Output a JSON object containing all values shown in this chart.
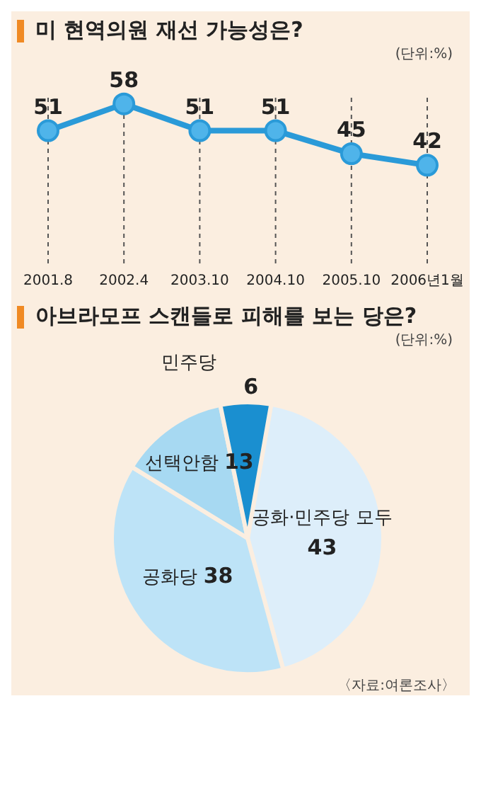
{
  "chart_data": [
    {
      "type": "line",
      "title": "미 현역의원 재선 가능성은?",
      "annotations": [
        "(단위:%)"
      ],
      "categories": [
        "2001.8",
        "2002.4",
        "2003.10",
        "2004.10",
        "2005.10",
        "2006년1월"
      ],
      "series": [
        {
          "color": "#2a9ad8",
          "values": [
            51,
            58,
            51,
            51,
            45,
            42
          ]
        }
      ],
      "data_labels": true,
      "marker": "circle",
      "grid": "x",
      "legend": false
    },
    {
      "type": "pie",
      "title": "아브라모프 스캔들로 피해를 보는 당은?",
      "annotations": [
        "(단위:%)",
        "〈자료:여론조사〉"
      ],
      "categories": [
        "공화·민주당 모두",
        "공화당",
        "선택안함",
        "민주당"
      ],
      "values": [
        43,
        38,
        13,
        6
      ],
      "colors": [
        "#ddeefa",
        "#bde3f7",
        "#a7d9f2",
        "#1a8fd0"
      ],
      "data_labels": true,
      "legend": false
    }
  ]
}
